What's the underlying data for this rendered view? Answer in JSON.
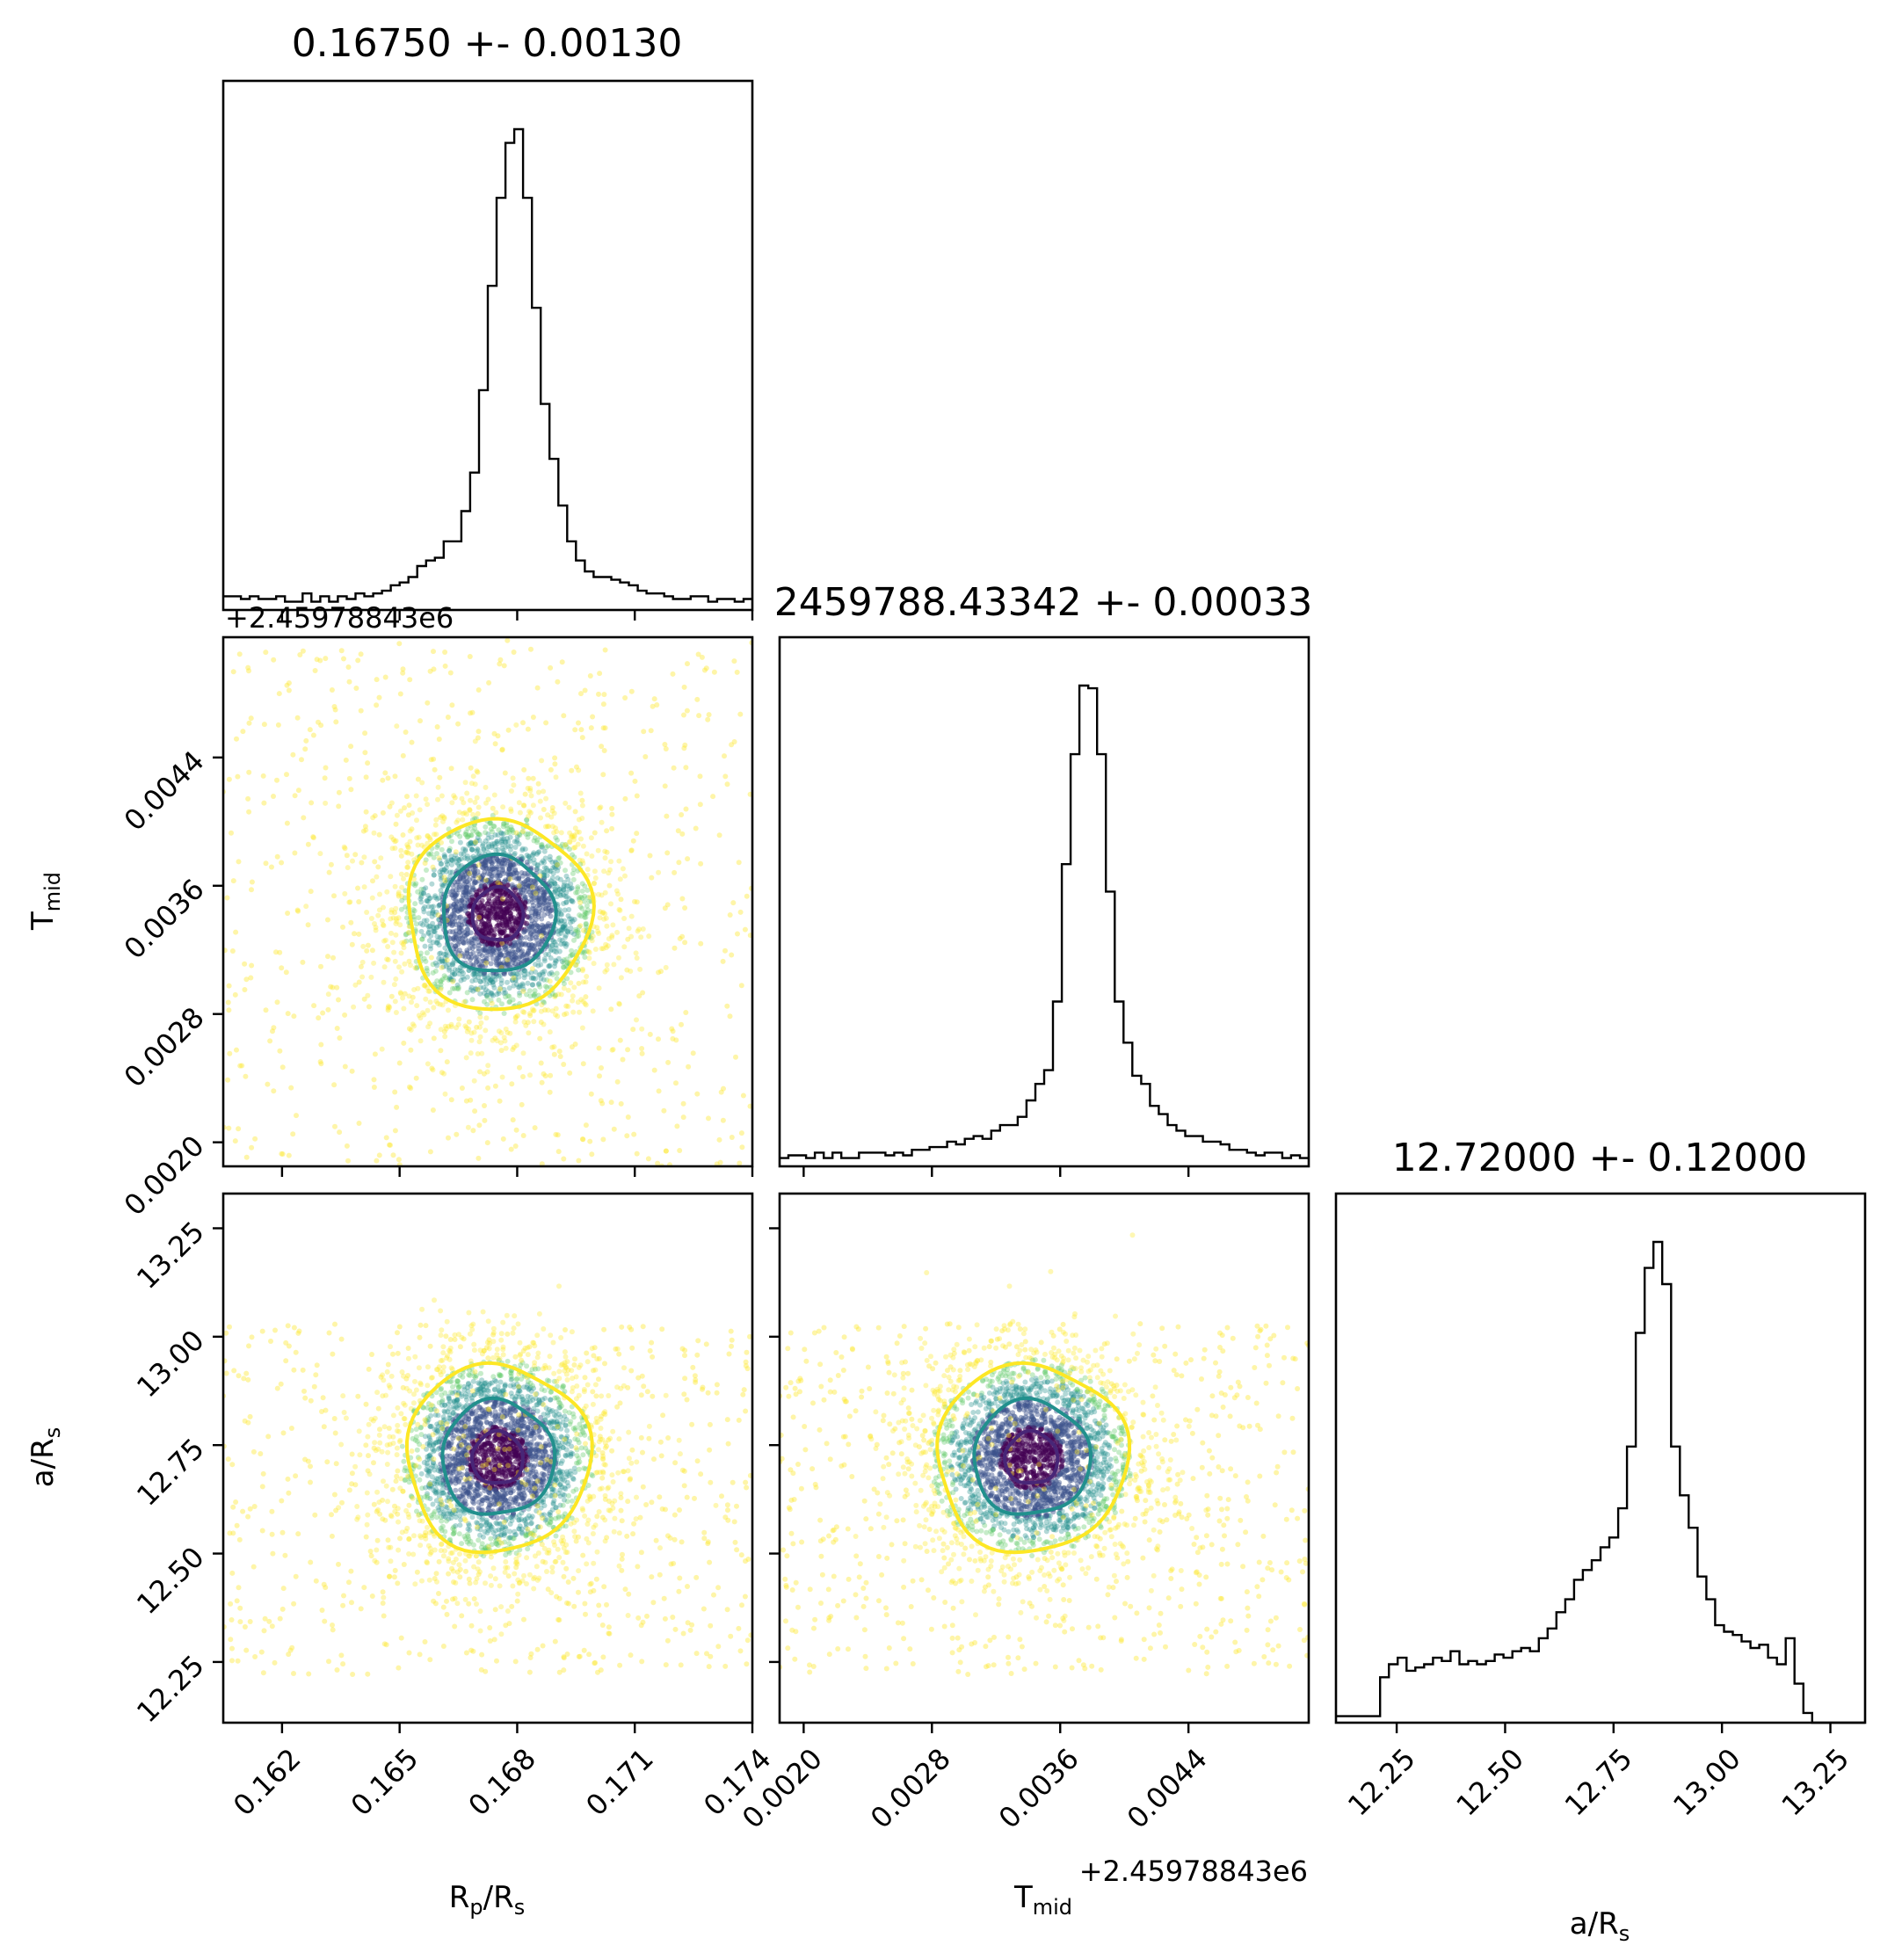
{
  "chart_data": {
    "type": "corner",
    "parameters": [
      {
        "key": "rprs",
        "label": "R",
        "label_sub": "p",
        "label_tail": "/R",
        "label_tail_sub": "s",
        "range": [
          0.1605,
          0.174
        ],
        "ticks": [
          0.162,
          0.165,
          0.168,
          0.171,
          0.174
        ],
        "tick_labels": [
          "0.162",
          "0.165",
          "0.168",
          "0.171",
          "0.174"
        ],
        "offset_text": "",
        "title": "0.16750 +- 0.00130",
        "mean": 0.1675,
        "std": 0.0013
      },
      {
        "key": "tmid",
        "label": "T",
        "label_sub": "mid",
        "label_tail": "",
        "label_tail_sub": "",
        "range": [
          0.00185,
          0.00515
        ],
        "ticks": [
          0.002,
          0.0028,
          0.0036,
          0.0044
        ],
        "tick_labels": [
          "0.0020",
          "0.0028",
          "0.0036",
          "0.0044"
        ],
        "offset_text": "+2.45978843e6",
        "title": "2459788.43342 +- 0.00033",
        "mean": 0.00342,
        "std": 0.00033
      },
      {
        "key": "ars",
        "label": "a/R",
        "label_sub": "s",
        "label_tail": "",
        "label_tail_sub": "",
        "range": [
          12.11,
          13.33
        ],
        "ticks": [
          12.25,
          12.5,
          12.75,
          13.0,
          13.25
        ],
        "tick_labels": [
          "12.25",
          "12.50",
          "12.75",
          "13.00",
          "13.25"
        ],
        "offset_text": "",
        "title": "12.72000 +- 0.12000",
        "mean": 12.72,
        "std": 0.12
      }
    ],
    "histograms": [
      {
        "param": "rprs",
        "bin_start": 0.1605,
        "bin_width": 0.000225,
        "counts": [
          5,
          5,
          4,
          5,
          4,
          4,
          5,
          3,
          3,
          6,
          3,
          5,
          3,
          5,
          4,
          6,
          5,
          6,
          7,
          9,
          10,
          12,
          16,
          18,
          19,
          25,
          25,
          36,
          50,
          80,
          118,
          150,
          170,
          175,
          150,
          110,
          75,
          55,
          38,
          25,
          18,
          14,
          12,
          12,
          11,
          10,
          9,
          7,
          6,
          6,
          5,
          4,
          4,
          5,
          5,
          3,
          4,
          4,
          3,
          4
        ]
      },
      {
        "param": "tmid",
        "bin_start": 0.00185,
        "bin_width": 5.5e-05,
        "counts": [
          3,
          4,
          4,
          3,
          5,
          3,
          5,
          3,
          3,
          5,
          5,
          5,
          4,
          5,
          4,
          6,
          6,
          7,
          7,
          9,
          8,
          10,
          11,
          10,
          13,
          15,
          15,
          18,
          24,
          30,
          35,
          60,
          110,
          150,
          175,
          174,
          150,
          100,
          60,
          45,
          33,
          30,
          22,
          19,
          15,
          13,
          11,
          11,
          9,
          9,
          8,
          6,
          6,
          5,
          4,
          5,
          5,
          3,
          4,
          3
        ]
      },
      {
        "param": "ars",
        "bin_start": 12.11,
        "bin_width": 0.0203,
        "counts": [
          0,
          0,
          0,
          0,
          0,
          0,
          0,
          0,
          0,
          0,
          0,
          0,
          0,
          0,
          0,
          0,
          0,
          0,
          0,
          0,
          0,
          0,
          0,
          0,
          0,
          0,
          0,
          0,
          0,
          0,
          0,
          0,
          0,
          0,
          0,
          0,
          0,
          0,
          0,
          0,
          0,
          0,
          0,
          0,
          0,
          0,
          0,
          0,
          0,
          0,
          0,
          0,
          0,
          0,
          0,
          0,
          0,
          0,
          0,
          0
        ]
      }
    ],
    "contour_levels_sigma": [
      0.5,
      1.1,
      1.8
    ],
    "contour_colors": [
      "#482677",
      "#21908d",
      "#fde725"
    ],
    "scatter_colors": [
      "#440154",
      "#3b528b",
      "#21908d",
      "#5dc863",
      "#fde725"
    ],
    "ars_histogram_counts": [
      2,
      2,
      2,
      2,
      2,
      14,
      18,
      20,
      16,
      17,
      18,
      20,
      19,
      22,
      18,
      19,
      18,
      19,
      21,
      20,
      22,
      23,
      22,
      26,
      29,
      34,
      38,
      44,
      47,
      50,
      54,
      57,
      66,
      85,
      120,
      140,
      148,
      135,
      85,
      70,
      60,
      45,
      38,
      30,
      28,
      27,
      25,
      23,
      24,
      20,
      18,
      26,
      12,
      3,
      0,
      0,
      0,
      0,
      0,
      0
    ]
  }
}
